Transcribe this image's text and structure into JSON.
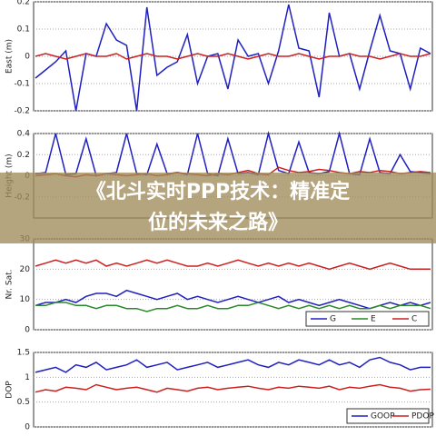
{
  "overlay_title": {
    "line1": "《北斗实时PPP技术：精准定",
    "line2": "位的未来之路》"
  },
  "chart_data": [
    {
      "type": "line",
      "ylabel": "East (m)",
      "ylim": [
        -0.2,
        0.2
      ],
      "yticks": [
        -0.2,
        -0.1,
        0,
        0.1,
        0.2
      ],
      "grid": true,
      "series": [
        {
          "color": "#2020c0",
          "values": [
            -0.08,
            -0.05,
            -0.02,
            0.02,
            -0.2,
            0.01,
            0.0,
            0.12,
            0.06,
            0.04,
            -0.2,
            0.18,
            -0.07,
            -0.04,
            -0.02,
            0.08,
            -0.1,
            0.0,
            0.01,
            -0.12,
            0.06,
            0.0,
            0.01,
            -0.1,
            0.02,
            0.19,
            0.03,
            0.02,
            -0.15,
            0.16,
            0.0,
            0.01,
            -0.12,
            0.02,
            0.15,
            0.02,
            0.01,
            -0.12,
            0.03,
            0.01
          ]
        },
        {
          "color": "#cc2020",
          "values": [
            0.0,
            0.01,
            0.0,
            -0.01,
            0.0,
            0.01,
            0.0,
            0.0,
            0.01,
            -0.01,
            0.0,
            0.01,
            0.0,
            0.0,
            -0.01,
            0.0,
            0.01,
            0.0,
            0.0,
            0.01,
            0.0,
            -0.01,
            0.0,
            0.01,
            0.0,
            0.0,
            0.01,
            0.0,
            -0.01,
            0.0,
            0.0,
            0.01,
            0.0,
            0.0,
            -0.01,
            0.0,
            0.01,
            0.0,
            0.0,
            0.01
          ]
        }
      ]
    },
    {
      "type": "line",
      "ylabel": "Height (m)",
      "ylim": [
        -0.4,
        0.4
      ],
      "yticks": [
        -0.2,
        0,
        0.2,
        0.4
      ],
      "grid": true,
      "series": [
        {
          "color": "#2020c0",
          "values": [
            0.02,
            0.03,
            0.4,
            0.01,
            0.02,
            0.35,
            0.0,
            0.02,
            0.03,
            0.4,
            0.02,
            0.01,
            0.3,
            0.02,
            0.03,
            0.01,
            0.4,
            0.02,
            0.0,
            0.35,
            0.02,
            0.03,
            0.01,
            0.4,
            0.05,
            0.02,
            0.32,
            0.03,
            0.02,
            0.04,
            0.4,
            0.02,
            0.01,
            0.35,
            0.03,
            0.02,
            0.2,
            0.04,
            0.03,
            0.02
          ]
        },
        {
          "color": "#cc2020",
          "values": [
            0.0,
            0.01,
            0.02,
            0.0,
            -0.01,
            0.01,
            0.0,
            0.02,
            0.01,
            0.0,
            0.01,
            0.02,
            0.0,
            0.01,
            0.03,
            0.02,
            0.01,
            0.0,
            0.02,
            0.01,
            0.03,
            0.05,
            0.02,
            0.01,
            0.08,
            0.05,
            0.03,
            0.04,
            0.06,
            0.05,
            0.03,
            0.02,
            0.04,
            0.03,
            0.05,
            0.04,
            0.02,
            0.03,
            0.04,
            0.03
          ]
        }
      ]
    },
    {
      "type": "line",
      "ylabel": "Nr. Sat.",
      "ylim": [
        0,
        30
      ],
      "yticks": [
        0,
        10,
        20,
        30
      ],
      "grid": true,
      "legend": "lower right",
      "series": [
        {
          "name": "G",
          "color": "#2020c0",
          "values": [
            8,
            9,
            9,
            10,
            9,
            11,
            12,
            12,
            11,
            13,
            12,
            11,
            10,
            11,
            12,
            10,
            11,
            10,
            9,
            10,
            11,
            10,
            9,
            10,
            11,
            9,
            10,
            9,
            8,
            9,
            10,
            9,
            8,
            7,
            8,
            9,
            8,
            9,
            8,
            9
          ]
        },
        {
          "name": "E",
          "color": "#2a8a2a",
          "values": [
            8,
            8,
            9,
            9,
            8,
            8,
            7,
            8,
            8,
            7,
            7,
            6,
            7,
            7,
            8,
            7,
            7,
            8,
            7,
            7,
            8,
            8,
            9,
            8,
            7,
            8,
            7,
            8,
            7,
            8,
            7,
            8,
            7,
            7,
            8,
            7,
            8,
            8,
            8,
            7
          ]
        },
        {
          "name": "C",
          "color": "#cc2020",
          "values": [
            21,
            22,
            23,
            22,
            23,
            22,
            23,
            21,
            22,
            21,
            22,
            23,
            22,
            23,
            22,
            21,
            21,
            22,
            21,
            22,
            23,
            22,
            21,
            22,
            21,
            22,
            21,
            22,
            21,
            20,
            21,
            22,
            21,
            20,
            21,
            22,
            21,
            20,
            20,
            20
          ]
        }
      ]
    },
    {
      "type": "line",
      "ylabel": "DOP",
      "ylim": [
        0,
        1.5
      ],
      "yticks": [
        0,
        0.5,
        1,
        1.5
      ],
      "grid": true,
      "legend": "lower right",
      "series": [
        {
          "name": "GOOP",
          "color": "#2020c0",
          "values": [
            1.1,
            1.15,
            1.2,
            1.1,
            1.25,
            1.2,
            1.3,
            1.15,
            1.2,
            1.25,
            1.35,
            1.2,
            1.25,
            1.3,
            1.15,
            1.2,
            1.25,
            1.3,
            1.2,
            1.25,
            1.3,
            1.35,
            1.25,
            1.2,
            1.3,
            1.25,
            1.35,
            1.3,
            1.25,
            1.35,
            1.25,
            1.3,
            1.2,
            1.35,
            1.4,
            1.3,
            1.25,
            1.15,
            1.2,
            1.2
          ]
        },
        {
          "name": "PDOP",
          "color": "#cc2020",
          "values": [
            0.7,
            0.75,
            0.72,
            0.8,
            0.78,
            0.75,
            0.85,
            0.8,
            0.75,
            0.78,
            0.8,
            0.75,
            0.7,
            0.78,
            0.75,
            0.72,
            0.78,
            0.8,
            0.75,
            0.78,
            0.8,
            0.82,
            0.78,
            0.75,
            0.8,
            0.78,
            0.82,
            0.8,
            0.78,
            0.82,
            0.75,
            0.8,
            0.78,
            0.82,
            0.85,
            0.8,
            0.78,
            0.72,
            0.75,
            0.76
          ]
        }
      ]
    }
  ]
}
